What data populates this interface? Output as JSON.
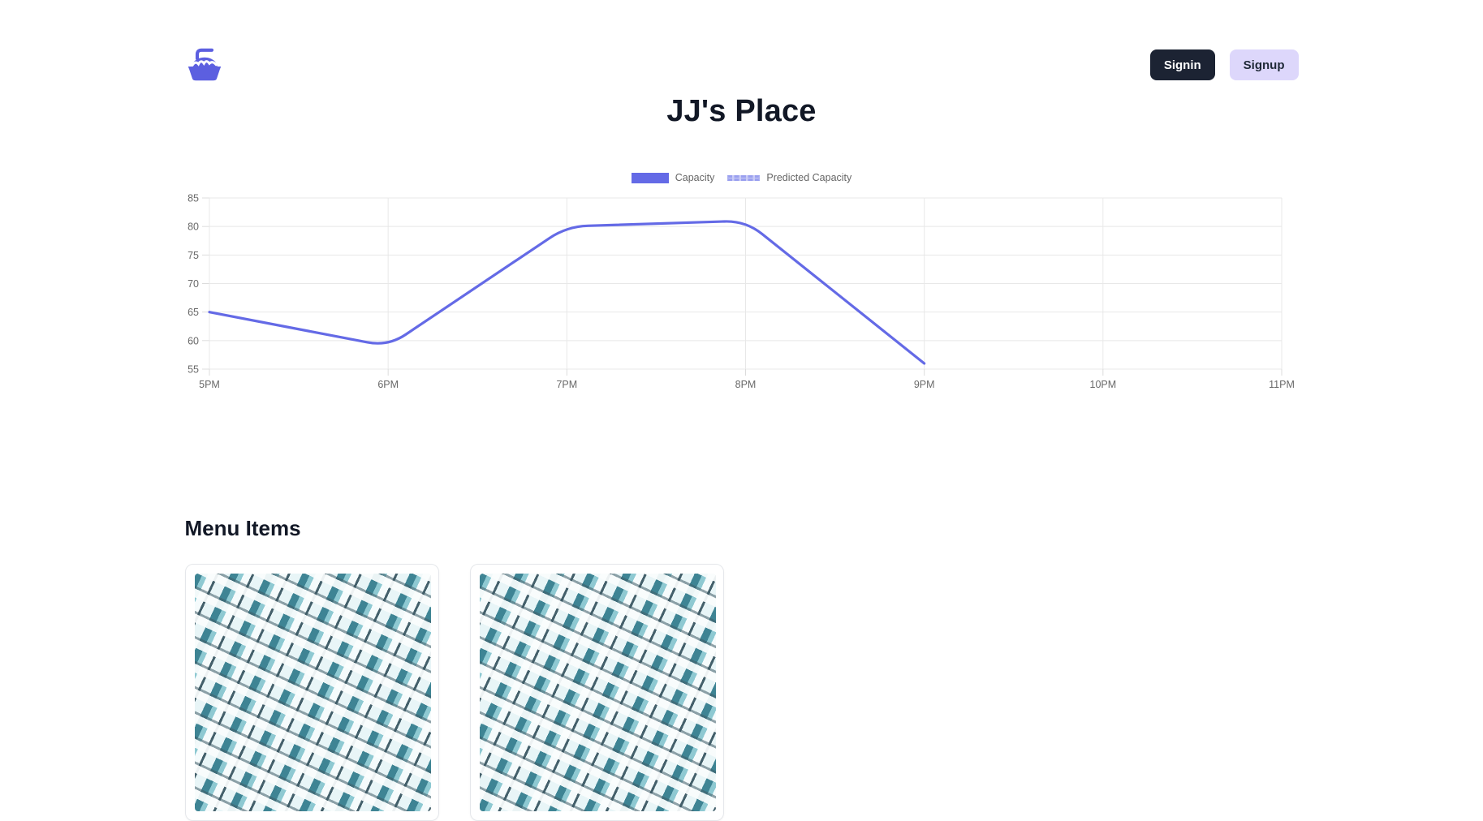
{
  "header": {
    "logo_icon": "pie-icon",
    "signin_label": "Signin",
    "signup_label": "Signup"
  },
  "page": {
    "title": "JJ's Place"
  },
  "chart_data": {
    "type": "line",
    "title": "",
    "xlabel": "",
    "ylabel": "",
    "x_labels": [
      "5PM",
      "6PM",
      "7PM",
      "8PM",
      "9PM",
      "10PM",
      "11PM"
    ],
    "y_ticks": [
      55,
      60,
      65,
      70,
      75,
      80,
      85
    ],
    "ylim": [
      55,
      85
    ],
    "grid": true,
    "legend_position": "top-center",
    "series": [
      {
        "name": "Capacity",
        "color": "#646ae6",
        "style": "solid",
        "x": [
          "5PM",
          "6PM",
          "7PM",
          "8PM",
          "9PM"
        ],
        "values": [
          65,
          59,
          80,
          81,
          56
        ]
      },
      {
        "name": "Predicted Capacity",
        "color": "#9aa0ef",
        "style": "dashed",
        "x": [],
        "values": []
      }
    ]
  },
  "menu": {
    "section_title": "Menu Items",
    "items": [
      {
        "image": "teal-lattice-pattern"
      },
      {
        "image": "teal-lattice-pattern"
      }
    ]
  },
  "colors": {
    "accent_indigo": "#646ae6",
    "signin_bg": "#1c2333",
    "signup_bg": "#ddd7fb",
    "grid_line": "#e8e8e8",
    "axis_text": "#696969"
  }
}
